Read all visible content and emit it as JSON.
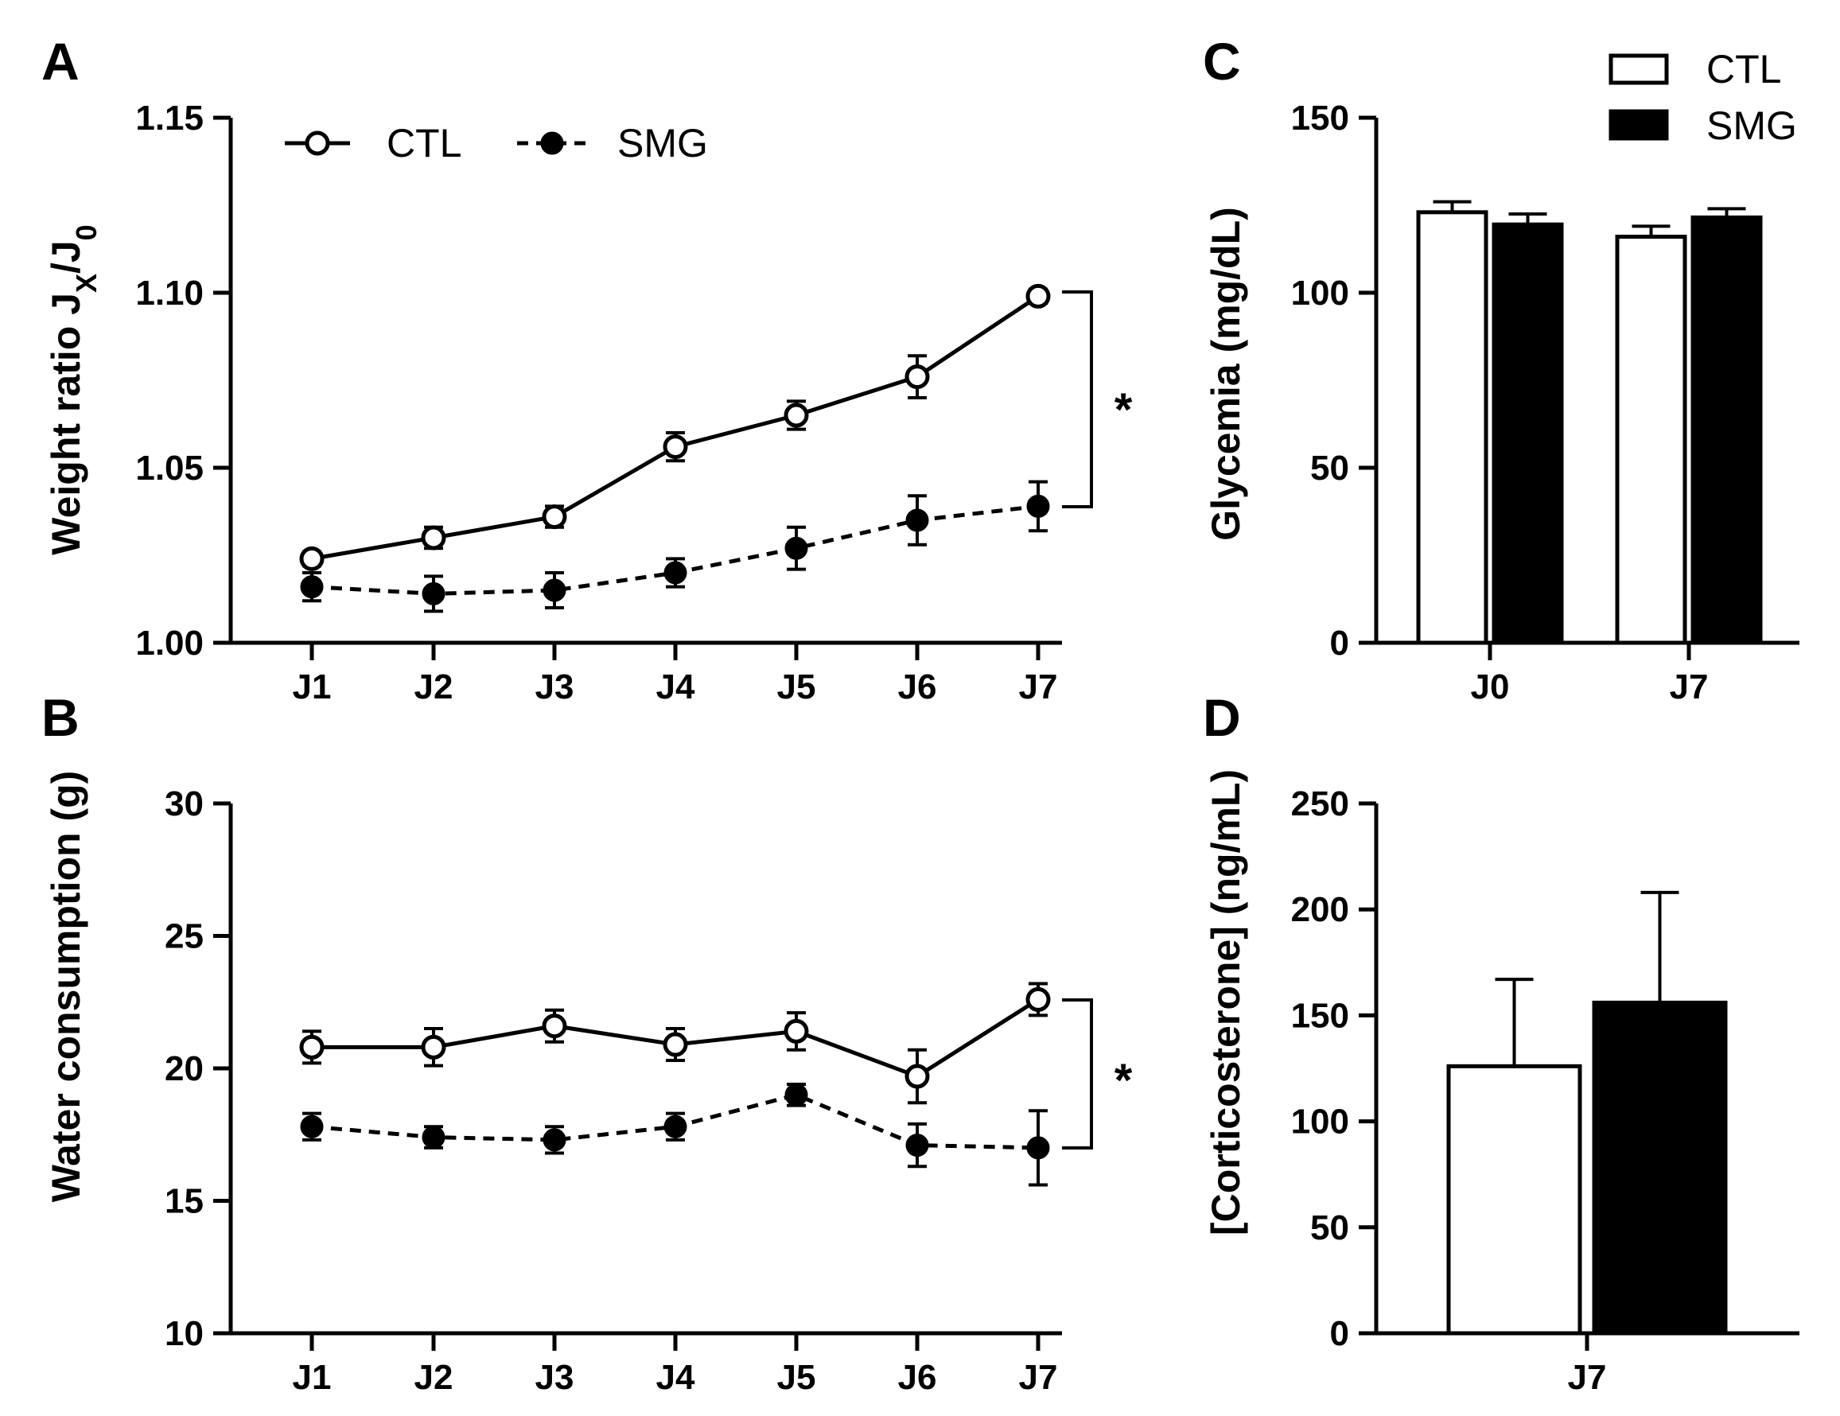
{
  "chart_data": [
    {
      "panel": "A",
      "type": "line",
      "ylabel": "Weight ratio J",
      "ylabel_sub1": "X",
      "ylabel_mid": "/J",
      "ylabel_sub2": "0",
      "ylim": [
        1.0,
        1.15
      ],
      "yticks": [
        1.0,
        1.05,
        1.1,
        1.15
      ],
      "ytick_labels": [
        "1.00",
        "1.05",
        "1.10",
        "1.15"
      ],
      "categories": [
        "J1",
        "J2",
        "J3",
        "J4",
        "J5",
        "J6",
        "J7"
      ],
      "series": [
        {
          "name": "CTL",
          "marker": "open-circle",
          "line": "solid",
          "values": [
            1.024,
            1.03,
            1.036,
            1.056,
            1.065,
            1.076,
            1.099
          ],
          "errors": [
            0.002,
            0.003,
            0.003,
            0.004,
            0.004,
            0.006,
            0.002
          ]
        },
        {
          "name": "SMG",
          "marker": "filled-circle",
          "line": "dashed",
          "values": [
            1.016,
            1.014,
            1.015,
            1.02,
            1.027,
            1.035,
            1.039
          ],
          "errors": [
            0.004,
            0.005,
            0.005,
            0.004,
            0.006,
            0.007,
            0.007
          ]
        }
      ],
      "legend": "top",
      "significance": "*"
    },
    {
      "panel": "B",
      "type": "line",
      "ylabel": "Water consumption (g)",
      "ylim": [
        10,
        30
      ],
      "yticks": [
        10,
        15,
        20,
        25,
        30
      ],
      "ytick_labels": [
        "10",
        "15",
        "20",
        "25",
        "30"
      ],
      "categories": [
        "J1",
        "J2",
        "J3",
        "J4",
        "J5",
        "J6",
        "J7"
      ],
      "series": [
        {
          "name": "CTL",
          "marker": "open-circle",
          "line": "solid",
          "values": [
            20.8,
            20.8,
            21.6,
            20.9,
            21.4,
            19.7,
            22.6
          ],
          "errors": [
            0.6,
            0.7,
            0.6,
            0.6,
            0.7,
            1.0,
            0.6
          ]
        },
        {
          "name": "SMG",
          "marker": "filled-circle",
          "line": "dashed",
          "values": [
            17.8,
            17.4,
            17.3,
            17.8,
            19.0,
            17.1,
            17.0
          ],
          "errors": [
            0.5,
            0.4,
            0.5,
            0.5,
            0.4,
            0.8,
            1.4
          ]
        }
      ],
      "significance": "*"
    },
    {
      "panel": "C",
      "type": "bar",
      "ylabel": "Glycemia (mg/dL)",
      "ylim": [
        0,
        150
      ],
      "yticks": [
        0,
        50,
        100,
        150
      ],
      "ytick_labels": [
        "0",
        "50",
        "100",
        "150"
      ],
      "categories": [
        "J0",
        "J7"
      ],
      "series": [
        {
          "name": "CTL",
          "fill": "white",
          "values": [
            123,
            116
          ],
          "errors": [
            3,
            3
          ]
        },
        {
          "name": "SMG",
          "fill": "black",
          "values": [
            119.5,
            121.5
          ],
          "errors": [
            3,
            2.5
          ]
        }
      ],
      "legend": "top-right"
    },
    {
      "panel": "D",
      "type": "bar",
      "ylabel": "[Corticosterone] (ng/mL)",
      "ylim": [
        0,
        250
      ],
      "yticks": [
        0,
        50,
        100,
        150,
        200,
        250
      ],
      "ytick_labels": [
        "0",
        "50",
        "100",
        "150",
        "200",
        "250"
      ],
      "categories": [
        "J7"
      ],
      "series": [
        {
          "name": "CTL",
          "fill": "white",
          "values": [
            126
          ],
          "errors": [
            41
          ]
        },
        {
          "name": "SMG",
          "fill": "black",
          "values": [
            156
          ],
          "errors": [
            52
          ]
        }
      ]
    }
  ]
}
